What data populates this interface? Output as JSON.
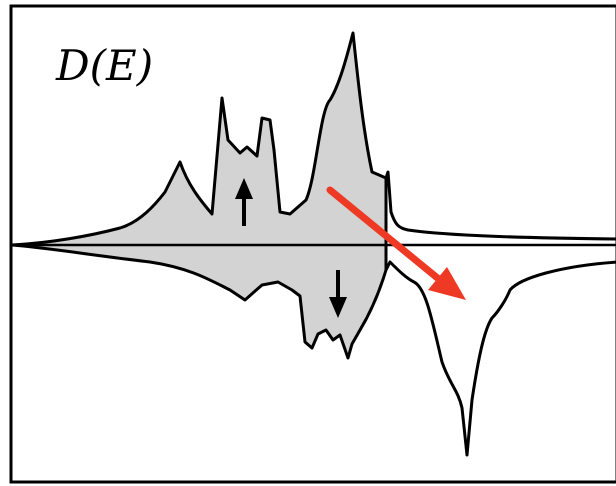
{
  "title": "D(E)",
  "colors": {
    "frame": "#000000",
    "occupied_fill": "#d3d3d3",
    "curve": "#000000",
    "arrow_transition": "#ee3a24",
    "background": "#ffffff"
  },
  "icons": {
    "spin_up": "up-arrow-icon",
    "spin_down": "down-arrow-icon",
    "transition": "transition-arrow-icon"
  }
}
